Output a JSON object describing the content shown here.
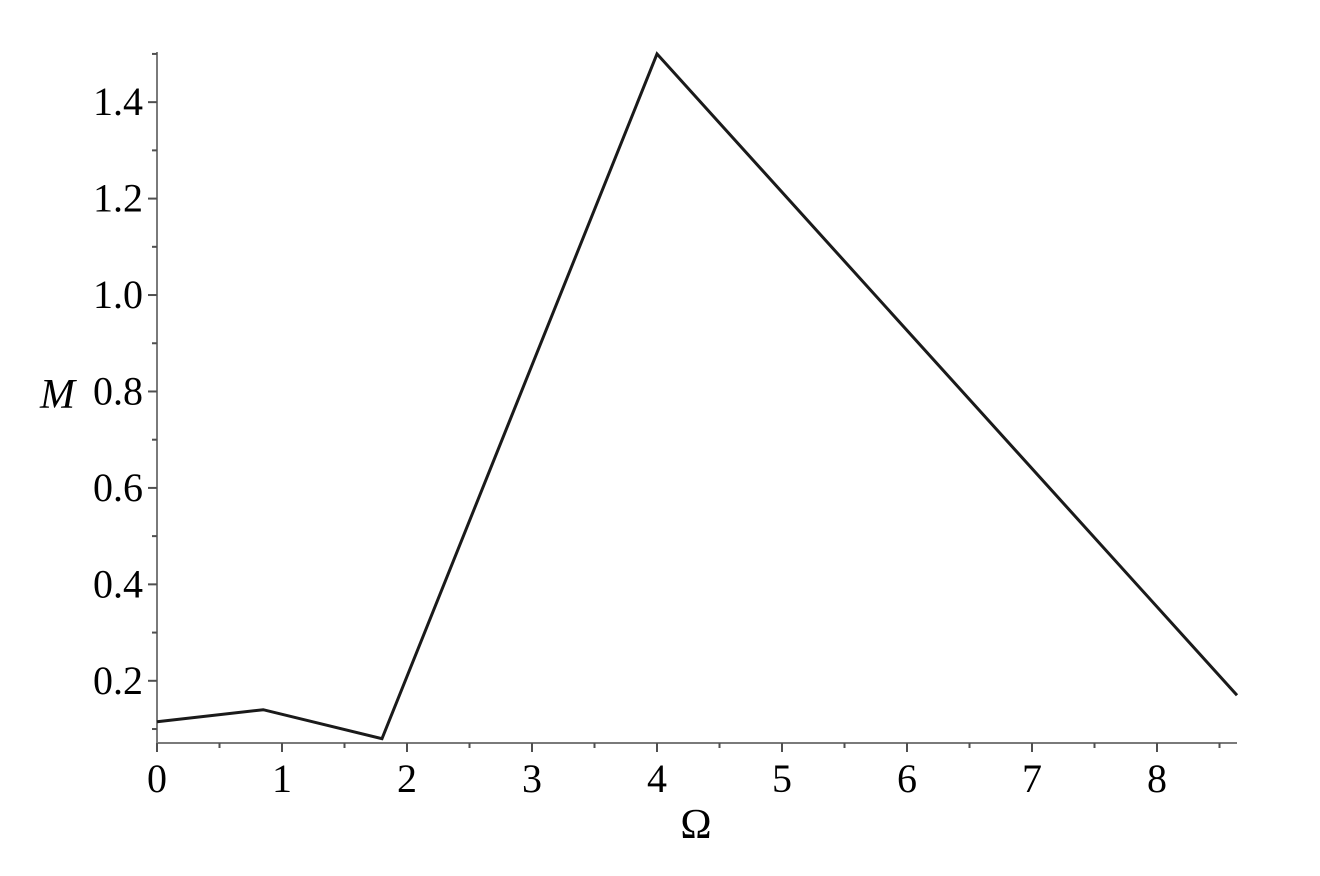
{
  "page": {
    "background_color": "#ffffff"
  },
  "chart_data": {
    "type": "line",
    "title": "",
    "xlabel": "Ω",
    "ylabel": "M",
    "x": [
      0,
      0.85,
      1.8,
      4,
      8.64
    ],
    "y": [
      0.115,
      0.14,
      0.08,
      1.5,
      0.17
    ],
    "xlim": [
      0,
      8.64
    ],
    "ylim": [
      0.071,
      1.504
    ],
    "x_major_ticks": {
      "values": [
        0,
        1,
        2,
        3,
        4,
        5,
        6,
        7,
        8
      ],
      "labels": [
        "0",
        "1",
        "2",
        "3",
        "4",
        "5",
        "6",
        "7",
        "8"
      ]
    },
    "x_minor_step": 0.5,
    "y_major_ticks": {
      "values": [
        0.2,
        0.4,
        0.6,
        0.8,
        1.0,
        1.2,
        1.4
      ],
      "labels": [
        "0.2",
        "0.4",
        "0.6",
        "0.8",
        "1.0",
        "1.2",
        "1.4"
      ]
    },
    "y_minor_step": 0.1,
    "grid": false,
    "legend": "none",
    "line_color": "#1a1a1a",
    "line_width": 3,
    "axis_color": "#7a7a7a",
    "tick_color": "#4f4f4f",
    "label_color": "#000000"
  }
}
